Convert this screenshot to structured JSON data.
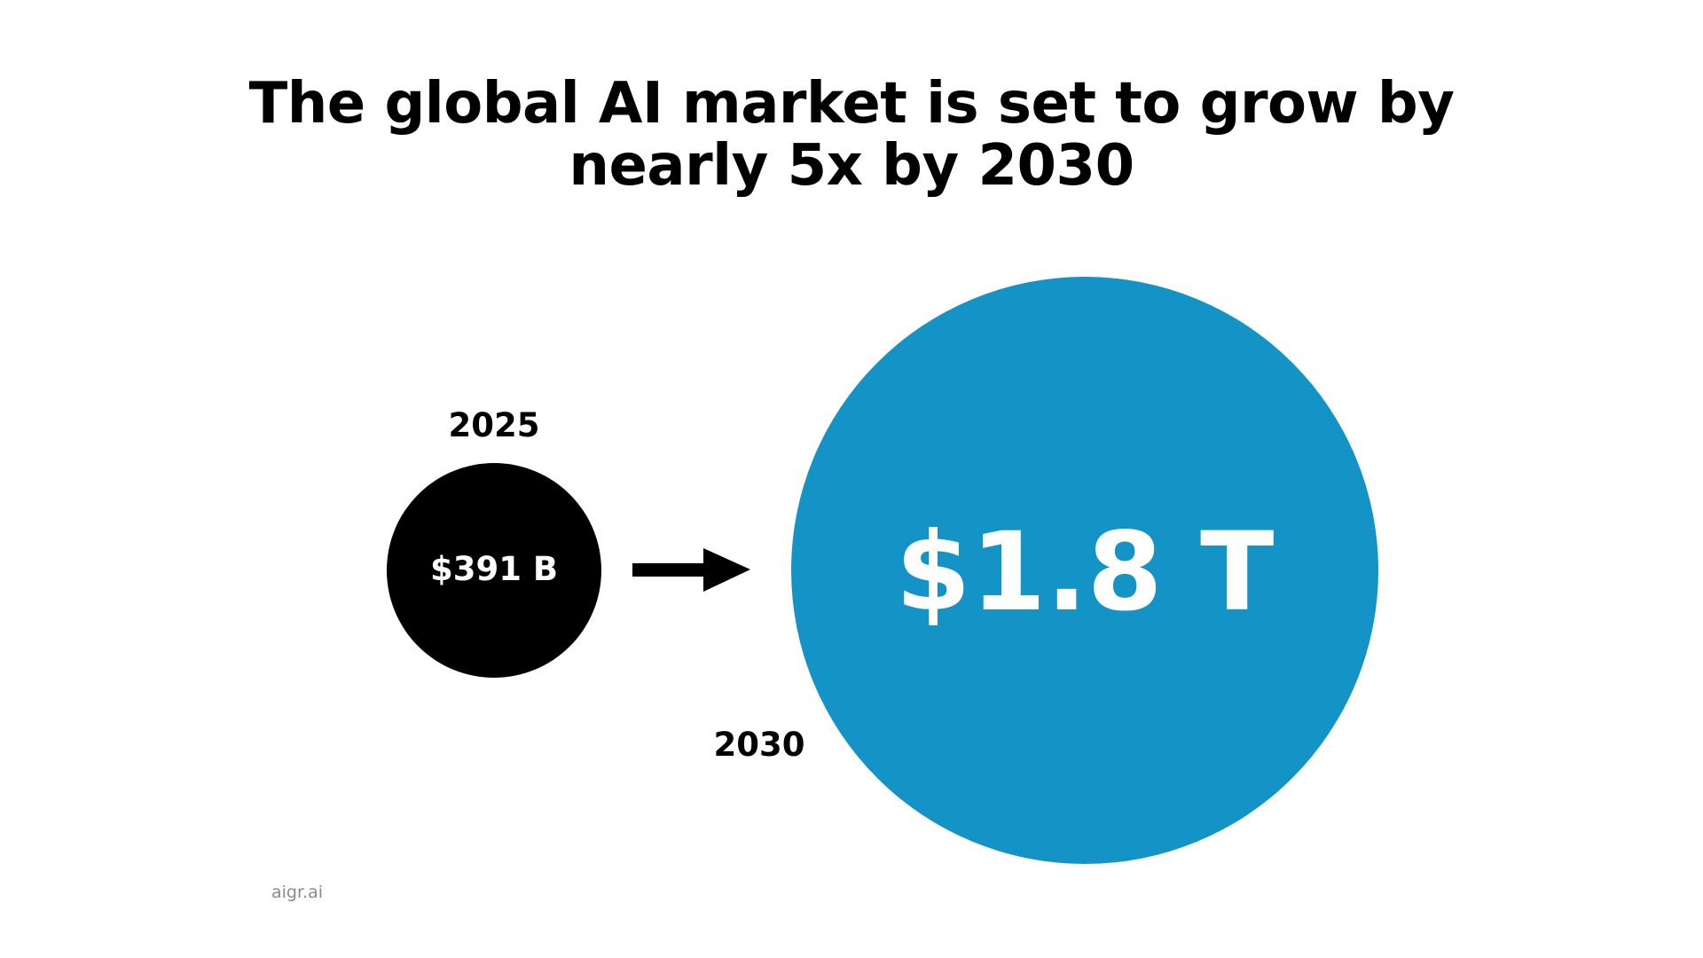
{
  "title_lines": [
    "The global AI market is set to grow by",
    "nearly 5x by 2030"
  ],
  "chart_data": {
    "type": "bubble",
    "points": [
      {
        "year": "2025",
        "value_billion_usd": 391,
        "label": "$391 B"
      },
      {
        "year": "2030",
        "value_billion_usd": 1800,
        "label": "$1.8 T"
      }
    ]
  },
  "colors": {
    "bubble_2025": "#000000",
    "bubble_2030": "#1393c6",
    "value_text": "#ffffff",
    "year_text": "#000000",
    "arrow": "#000000"
  },
  "watermark": "aigr.ai"
}
